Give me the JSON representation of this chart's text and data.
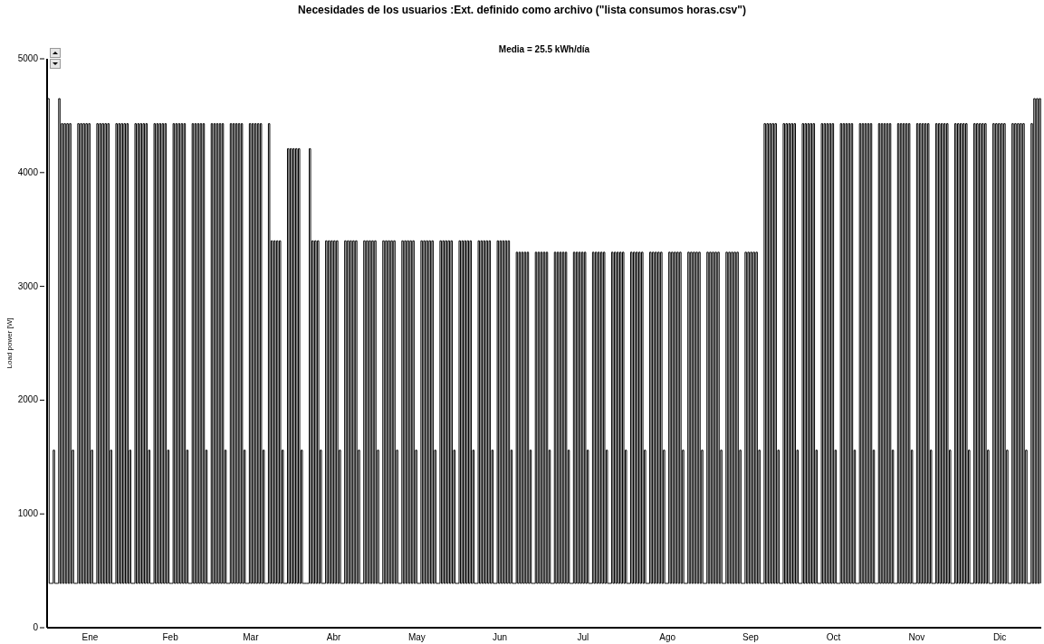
{
  "chart_data": {
    "type": "step",
    "title": "Necesidades de los usuarios :Ext. definido como archivo  (\"lista consumos horas.csv\")",
    "subtitle": "Media = 25.5 kWh/día",
    "ylabel": "Load power [W]",
    "categories": [
      null,
      null,
      null,
      null,
      null,
      null,
      null,
      null,
      null,
      null,
      null,
      null,
      null,
      null,
      null,
      null,
      null,
      null,
      null,
      null,
      null,
      null,
      null,
      null,
      null,
      null,
      null,
      null,
      null,
      null,
      null,
      "Ene",
      null,
      null,
      null,
      null,
      null,
      null,
      null,
      null,
      null,
      null,
      null,
      null,
      null,
      null,
      null,
      null,
      null,
      null,
      null,
      null,
      null,
      null,
      null,
      null,
      null,
      null,
      null,
      null,
      null,
      null,
      null,
      null,
      null,
      null,
      null,
      null,
      null,
      null,
      null,
      null,
      null,
      null,
      null,
      null,
      null,
      null,
      null,
      null,
      null,
      null,
      null,
      null,
      null,
      null,
      null,
      null,
      null,
      null,
      "Feb",
      null,
      null,
      null,
      null,
      null,
      null,
      null,
      null,
      null,
      null,
      null,
      null,
      null,
      null,
      null,
      null,
      null,
      null,
      null,
      null,
      null,
      null,
      null,
      null,
      null,
      null,
      null,
      null,
      null,
      null,
      null,
      null,
      null,
      null,
      null,
      null,
      null,
      null,
      null,
      null,
      null,
      null,
      null,
      null,
      null,
      null,
      null,
      null,
      null,
      null,
      null,
      null,
      null,
      null,
      null,
      null,
      null,
      null,
      "Mar",
      null,
      null,
      null,
      null,
      null,
      null,
      null,
      null,
      null,
      null,
      null,
      null,
      null,
      null,
      null,
      null,
      null,
      null,
      null,
      null,
      null,
      null,
      null,
      null,
      null,
      null,
      null,
      null,
      null,
      null,
      null,
      null,
      null,
      null,
      null,
      null,
      null,
      null,
      null,
      null,
      null,
      null,
      null,
      null,
      null,
      null,
      null,
      null,
      null,
      null,
      null,
      null,
      null,
      null,
      null,
      null,
      null,
      null,
      null,
      null,
      "Abr",
      null,
      null,
      null,
      null,
      null,
      null,
      null,
      null,
      null,
      null,
      null,
      null,
      null,
      null,
      null,
      null,
      null,
      null,
      null,
      null,
      null,
      null,
      null,
      null,
      null,
      null,
      null,
      null,
      null,
      null,
      null,
      null,
      null,
      null,
      null,
      null,
      null,
      null,
      null,
      null,
      null,
      null,
      null,
      null,
      null,
      null,
      null,
      null,
      null,
      null,
      null,
      null,
      null,
      null,
      null,
      null,
      null,
      null,
      null,
      null,
      "May",
      null,
      null,
      null,
      null,
      null,
      null,
      null,
      null,
      null,
      null,
      null,
      null,
      null,
      null,
      null,
      null,
      null,
      null,
      null,
      null,
      null,
      null,
      null,
      null,
      null,
      null,
      null,
      null,
      null,
      null,
      null,
      null,
      null,
      null,
      null,
      null,
      null,
      null,
      null,
      null,
      null,
      null,
      null,
      null,
      null,
      null,
      null,
      null,
      null,
      null,
      null,
      null,
      null,
      null,
      null,
      null,
      null,
      null,
      null,
      null,
      "Jun",
      null,
      null,
      null,
      null,
      null,
      null,
      null,
      null,
      null,
      null,
      null,
      null,
      null,
      null,
      null,
      null,
      null,
      null,
      null,
      null,
      null,
      null,
      null,
      null,
      null,
      null,
      null,
      null,
      null,
      null,
      null,
      null,
      null,
      null,
      null,
      null,
      null,
      null,
      null,
      null,
      null,
      null,
      null,
      null,
      null,
      null,
      null,
      null,
      null,
      null,
      null,
      null,
      null,
      null,
      null,
      null,
      null,
      null,
      null,
      null,
      "Jul",
      null,
      null,
      null,
      null,
      null,
      null,
      null,
      null,
      null,
      null,
      null,
      null,
      null,
      null,
      null,
      null,
      null,
      null,
      null,
      null,
      null,
      null,
      null,
      null,
      null,
      null,
      null,
      null,
      null,
      null,
      null,
      null,
      null,
      null,
      null,
      null,
      null,
      null,
      null,
      null,
      null,
      null,
      null,
      null,
      null,
      null,
      null,
      null,
      null,
      null,
      null,
      null,
      null,
      null,
      null,
      null,
      null,
      null,
      null,
      null,
      null,
      "Ago",
      null,
      null,
      null,
      null,
      null,
      null,
      null,
      null,
      null,
      null,
      null,
      null,
      null,
      null,
      null,
      null,
      null,
      null,
      null,
      null,
      null,
      null,
      null,
      null,
      null,
      null,
      null,
      null,
      null,
      null,
      null,
      null,
      null,
      null,
      null,
      null,
      null,
      null,
      null,
      null,
      null,
      null,
      null,
      null,
      null,
      null,
      null,
      null,
      null,
      null,
      null,
      null,
      null,
      null,
      null,
      null,
      null,
      null,
      null,
      null,
      "Sep",
      null,
      null,
      null,
      null,
      null,
      null,
      null,
      null,
      null,
      null,
      null,
      null,
      null,
      null,
      null,
      null,
      null,
      null,
      null,
      null,
      null,
      null,
      null,
      null,
      null,
      null,
      null,
      null,
      null,
      null,
      null,
      null,
      null,
      null,
      null,
      null,
      null,
      null,
      null,
      null,
      null,
      null,
      null,
      null,
      null,
      null,
      null,
      null,
      null,
      null,
      null,
      null,
      null,
      null,
      null,
      null,
      null,
      null,
      null,
      null,
      "Oct",
      null,
      null,
      null,
      null,
      null,
      null,
      null,
      null,
      null,
      null,
      null,
      null,
      null,
      null,
      null,
      null,
      null,
      null,
      null,
      null,
      null,
      null,
      null,
      null,
      null,
      null,
      null,
      null,
      null,
      null,
      null,
      null,
      null,
      null,
      null,
      null,
      null,
      null,
      null,
      null,
      null,
      null,
      null,
      null,
      null,
      null,
      null,
      null,
      null,
      null,
      null,
      null,
      null,
      null,
      null,
      null,
      null,
      null,
      null,
      null,
      "Nov",
      null,
      null,
      null,
      null,
      null,
      null,
      null,
      null,
      null,
      null,
      null,
      null,
      null,
      null,
      null,
      null,
      null,
      null,
      null,
      null,
      null,
      null,
      null,
      null,
      null,
      null,
      null,
      null,
      null,
      null,
      null,
      null,
      null,
      null,
      null,
      null,
      null,
      null,
      null,
      null,
      null,
      null,
      null,
      null,
      null,
      null,
      null,
      null,
      null,
      null,
      null,
      null,
      null,
      null,
      null,
      null,
      null,
      null,
      null,
      null,
      "Dic",
      null,
      null,
      null,
      null,
      null,
      null,
      null,
      null,
      null,
      null,
      null,
      null,
      null,
      null,
      null,
      null,
      null,
      null,
      null,
      null,
      null,
      null,
      null,
      null,
      null,
      null,
      null,
      null,
      null,
      null
    ],
    "ylim": [
      0,
      5000
    ],
    "yticks": [
      0,
      1000,
      2000,
      3000,
      4000,
      5000
    ],
    "series": [
      {
        "color": "#000000",
        "values": [
          4650,
          390,
          390,
          390,
          1560,
          390,
          390,
          390,
          4650,
          390,
          4430,
          390,
          4430,
          390,
          4430,
          390,
          4430,
          390,
          1560,
          390,
          390,
          390,
          4430,
          390,
          4430,
          390,
          4430,
          390,
          4430,
          390,
          4430,
          390,
          1560,
          390,
          390,
          390,
          4430,
          390,
          4430,
          390,
          4430,
          390,
          4430,
          390,
          4430,
          390,
          1560,
          390,
          390,
          390,
          4430,
          390,
          4430,
          390,
          4430,
          390,
          4430,
          390,
          4430,
          390,
          1560,
          390,
          390,
          390,
          4430,
          390,
          4430,
          390,
          4430,
          390,
          4430,
          390,
          4430,
          390,
          1560,
          390,
          390,
          390,
          4430,
          390,
          4430,
          390,
          4430,
          390,
          4430,
          390,
          4430,
          390,
          1560,
          390,
          390,
          390,
          4430,
          390,
          4430,
          390,
          4430,
          390,
          4430,
          390,
          4430,
          390,
          1560,
          390,
          390,
          390,
          4430,
          390,
          4430,
          390,
          4430,
          390,
          4430,
          390,
          4430,
          390,
          1560,
          390,
          390,
          390,
          4430,
          390,
          4430,
          390,
          4430,
          390,
          4430,
          390,
          4430,
          390,
          1560,
          390,
          390,
          390,
          4430,
          390,
          4430,
          390,
          4430,
          390,
          4430,
          390,
          4430,
          390,
          1560,
          390,
          390,
          390,
          4430,
          390,
          4430,
          390,
          4430,
          390,
          4430,
          390,
          4430,
          390,
          1560,
          390,
          390,
          390,
          4430,
          390,
          3400,
          390,
          3400,
          390,
          3400,
          390,
          3400,
          390,
          1560,
          390,
          390,
          390,
          4210,
          390,
          4210,
          390,
          4210,
          390,
          4210,
          390,
          4210,
          390,
          1560,
          390,
          390,
          390,
          390,
          390,
          4210,
          390,
          3400,
          390,
          3400,
          390,
          3400,
          390,
          1560,
          390,
          390,
          390,
          3400,
          390,
          3400,
          390,
          3400,
          390,
          3400,
          390,
          3400,
          390,
          1560,
          390,
          390,
          390,
          3400,
          390,
          3400,
          390,
          3400,
          390,
          3400,
          390,
          3400,
          390,
          1560,
          390,
          390,
          390,
          3400,
          390,
          3400,
          390,
          3400,
          390,
          3400,
          390,
          3400,
          390,
          1560,
          390,
          390,
          390,
          3400,
          390,
          3400,
          390,
          3400,
          390,
          3400,
          390,
          3400,
          390,
          1560,
          390,
          390,
          390,
          3400,
          390,
          3400,
          390,
          3400,
          390,
          3400,
          390,
          3400,
          390,
          1560,
          390,
          390,
          390,
          3400,
          390,
          3400,
          390,
          3400,
          390,
          3400,
          390,
          3400,
          390,
          1560,
          390,
          390,
          390,
          3400,
          390,
          3400,
          390,
          3400,
          390,
          3400,
          390,
          3400,
          390,
          1560,
          390,
          390,
          390,
          3400,
          390,
          3400,
          390,
          3400,
          390,
          3400,
          390,
          3400,
          390,
          1560,
          390,
          390,
          390,
          3400,
          390,
          3400,
          390,
          3400,
          390,
          3400,
          390,
          3400,
          390,
          1560,
          390,
          390,
          390,
          3400,
          390,
          3400,
          390,
          3400,
          390,
          3400,
          390,
          3400,
          390,
          1560,
          390,
          390,
          390,
          3300,
          390,
          3300,
          390,
          3300,
          390,
          3300,
          390,
          3300,
          390,
          1560,
          390,
          390,
          390,
          3300,
          390,
          3300,
          390,
          3300,
          390,
          3300,
          390,
          3300,
          390,
          1560,
          390,
          390,
          390,
          3300,
          390,
          3300,
          390,
          3300,
          390,
          3300,
          390,
          3300,
          390,
          1560,
          390,
          390,
          390,
          3300,
          390,
          3300,
          390,
          3300,
          390,
          3300,
          390,
          3300,
          390,
          1560,
          390,
          390,
          390,
          3300,
          390,
          3300,
          390,
          3300,
          390,
          3300,
          390,
          3300,
          390,
          1560,
          390,
          390,
          390,
          3300,
          390,
          3300,
          390,
          3300,
          390,
          3300,
          390,
          3300,
          390,
          1560,
          390,
          390,
          390,
          3300,
          390,
          3300,
          390,
          3300,
          390,
          3300,
          390,
          3300,
          390,
          1560,
          390,
          390,
          390,
          3300,
          390,
          3300,
          390,
          3300,
          390,
          3300,
          390,
          3300,
          390,
          1560,
          390,
          390,
          390,
          3300,
          390,
          3300,
          390,
          3300,
          390,
          3300,
          390,
          3300,
          390,
          1560,
          390,
          390,
          390,
          3300,
          390,
          3300,
          390,
          3300,
          390,
          3300,
          390,
          3300,
          390,
          1560,
          390,
          390,
          390,
          3300,
          390,
          3300,
          390,
          3300,
          390,
          3300,
          390,
          3300,
          390,
          1560,
          390,
          390,
          390,
          3300,
          390,
          3300,
          390,
          3300,
          390,
          3300,
          390,
          3300,
          390,
          1560,
          390,
          390,
          390,
          3300,
          390,
          3300,
          390,
          3300,
          390,
          3300,
          390,
          3300,
          390,
          1560,
          390,
          390,
          390,
          4430,
          390,
          4430,
          390,
          4430,
          390,
          4430,
          390,
          4430,
          390,
          1560,
          390,
          390,
          390,
          4430,
          390,
          4430,
          390,
          4430,
          390,
          4430,
          390,
          4430,
          390,
          1560,
          390,
          390,
          390,
          4430,
          390,
          4430,
          390,
          4430,
          390,
          4430,
          390,
          4430,
          390,
          1560,
          390,
          390,
          390,
          4430,
          390,
          4430,
          390,
          4430,
          390,
          4430,
          390,
          4430,
          390,
          1560,
          390,
          390,
          390,
          4430,
          390,
          4430,
          390,
          4430,
          390,
          4430,
          390,
          4430,
          390,
          1560,
          390,
          390,
          390,
          4430,
          390,
          4430,
          390,
          4430,
          390,
          4430,
          390,
          4430,
          390,
          1560,
          390,
          390,
          390,
          4430,
          390,
          4430,
          390,
          4430,
          390,
          4430,
          390,
          4430,
          390,
          1560,
          390,
          390,
          390,
          4430,
          390,
          4430,
          390,
          4430,
          390,
          4430,
          390,
          4430,
          390,
          1560,
          390,
          390,
          390,
          4430,
          390,
          4430,
          390,
          4430,
          390,
          4430,
          390,
          4430,
          390,
          1560,
          390,
          390,
          390,
          4430,
          390,
          4430,
          390,
          4430,
          390,
          4430,
          390,
          4430,
          390,
          1560,
          390,
          390,
          390,
          4430,
          390,
          4430,
          390,
          4430,
          390,
          4430,
          390,
          4430,
          390,
          1560,
          390,
          390,
          390,
          4430,
          390,
          4430,
          390,
          4430,
          390,
          4430,
          390,
          4430,
          390,
          1560,
          390,
          390,
          390,
          4430,
          390,
          4430,
          390,
          4430,
          390,
          4430,
          390,
          4430,
          390,
          1560,
          390,
          390,
          390,
          4430,
          390,
          4430,
          390,
          4430,
          390,
          4430,
          390,
          4430,
          390,
          1560,
          390,
          390,
          390,
          4430,
          390,
          4650,
          390,
          4650,
          390,
          4650,
          390
        ]
      }
    ]
  }
}
